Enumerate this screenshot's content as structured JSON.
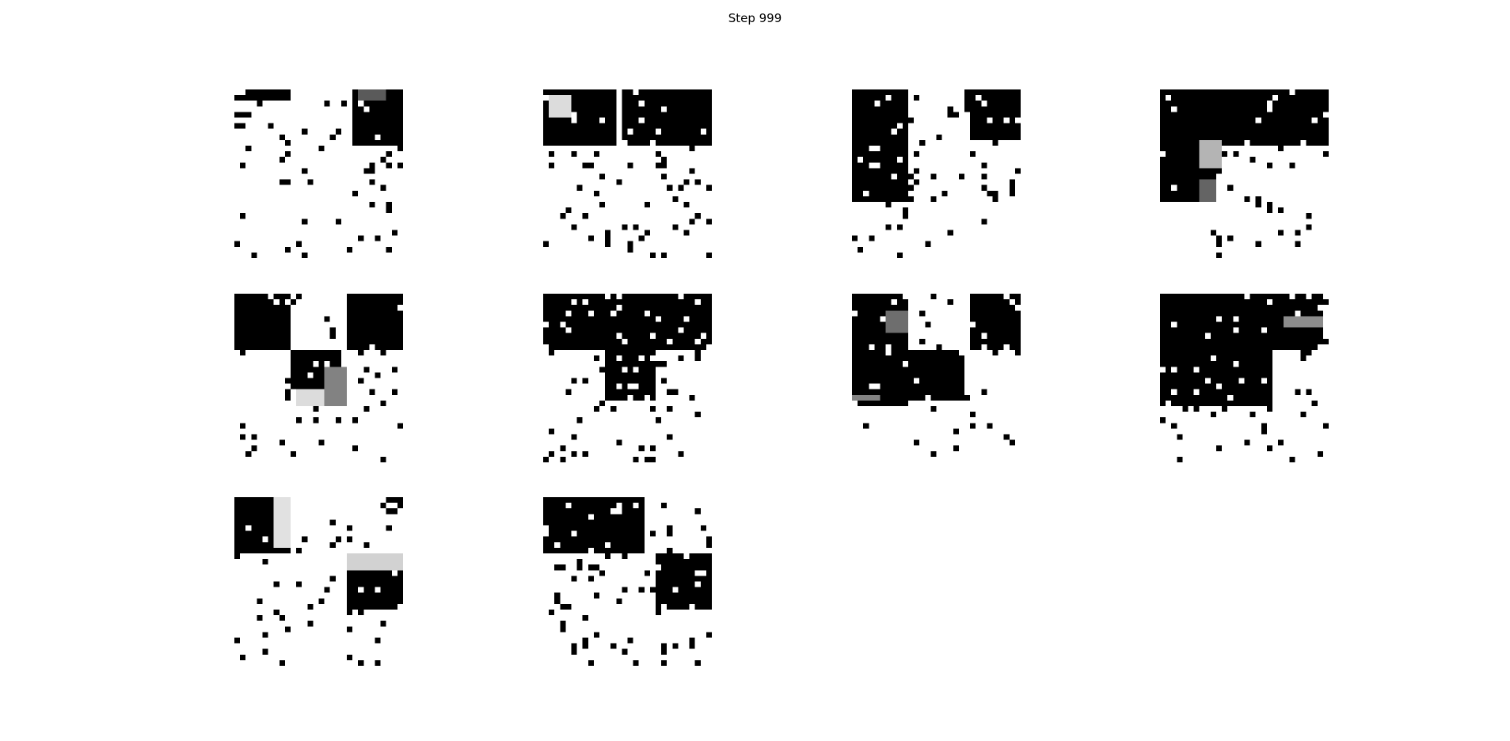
{
  "title": "Step 999",
  "grid": {
    "rows": 3,
    "cols": 4,
    "panel_count": 10,
    "image_cells": 30
  },
  "panels": [
    {
      "id": 1,
      "blocks": [
        {
          "r0": 0,
          "c0": 0,
          "r1": 2,
          "c1": 10,
          "v": 0
        },
        {
          "r0": 0,
          "c0": 21,
          "r1": 10,
          "c1": 30,
          "v": 0
        },
        {
          "r0": 0,
          "c0": 22,
          "r1": 2,
          "c1": 27,
          "v": 90
        }
      ],
      "density": 0.07,
      "seed": 11
    },
    {
      "id": 2,
      "blocks": [
        {
          "r0": 0,
          "c0": 0,
          "r1": 10,
          "c1": 13,
          "v": 0
        },
        {
          "r0": 0,
          "c0": 14,
          "r1": 10,
          "c1": 30,
          "v": 0
        },
        {
          "r0": 1,
          "c0": 1,
          "r1": 5,
          "c1": 5,
          "v": 220
        }
      ],
      "density": 0.07,
      "seed": 23
    },
    {
      "id": 3,
      "blocks": [
        {
          "r0": 0,
          "c0": 0,
          "r1": 20,
          "c1": 10,
          "v": 0
        },
        {
          "r0": 0,
          "c0": 20,
          "r1": 9,
          "c1": 30,
          "v": 0
        },
        {
          "r0": 4,
          "c0": 20,
          "r1": 9,
          "c1": 21,
          "v": 255
        }
      ],
      "density": 0.07,
      "seed": 37
    },
    {
      "id": 4,
      "blocks": [
        {
          "r0": 0,
          "c0": 0,
          "r1": 10,
          "c1": 30,
          "v": 0
        },
        {
          "r0": 10,
          "c0": 0,
          "r1": 20,
          "c1": 10,
          "v": 0
        },
        {
          "r0": 9,
          "c0": 7,
          "r1": 14,
          "c1": 11,
          "v": 180
        },
        {
          "r0": 16,
          "c0": 7,
          "r1": 20,
          "c1": 10,
          "v": 100
        }
      ],
      "density": 0.06,
      "seed": 41
    },
    {
      "id": 5,
      "blocks": [
        {
          "r0": 0,
          "c0": 0,
          "r1": 10,
          "c1": 10,
          "v": 0
        },
        {
          "r0": 0,
          "c0": 20,
          "r1": 10,
          "c1": 30,
          "v": 0
        },
        {
          "r0": 10,
          "c0": 10,
          "r1": 17,
          "c1": 19,
          "v": 0
        },
        {
          "r0": 13,
          "c0": 16,
          "r1": 20,
          "c1": 20,
          "v": 130
        },
        {
          "r0": 17,
          "c0": 11,
          "r1": 20,
          "c1": 16,
          "v": 220
        }
      ],
      "density": 0.07,
      "seed": 53
    },
    {
      "id": 6,
      "blocks": [
        {
          "r0": 0,
          "c0": 0,
          "r1": 10,
          "c1": 30,
          "v": 0
        },
        {
          "r0": 10,
          "c0": 11,
          "r1": 19,
          "c1": 20,
          "v": 0
        }
      ],
      "density": 0.06,
      "seed": 67
    },
    {
      "id": 7,
      "blocks": [
        {
          "r0": 0,
          "c0": 0,
          "r1": 20,
          "c1": 10,
          "v": 0
        },
        {
          "r0": 0,
          "c0": 21,
          "r1": 10,
          "c1": 30,
          "v": 0
        },
        {
          "r0": 10,
          "c0": 10,
          "r1": 19,
          "c1": 20,
          "v": 0
        },
        {
          "r0": 3,
          "c0": 6,
          "r1": 7,
          "c1": 10,
          "v": 110
        },
        {
          "r0": 18,
          "c0": 0,
          "r1": 19,
          "c1": 5,
          "v": 130
        }
      ],
      "density": 0.06,
      "seed": 79
    },
    {
      "id": 8,
      "blocks": [
        {
          "r0": 0,
          "c0": 0,
          "r1": 20,
          "c1": 20,
          "v": 0
        },
        {
          "r0": 0,
          "c0": 20,
          "r1": 10,
          "c1": 29,
          "v": 0
        },
        {
          "r0": 4,
          "c0": 22,
          "r1": 6,
          "c1": 29,
          "v": 140
        }
      ],
      "density": 0.07,
      "seed": 83
    },
    {
      "id": 9,
      "blocks": [
        {
          "r0": 0,
          "c0": 0,
          "r1": 10,
          "c1": 10,
          "v": 0
        },
        {
          "r0": 10,
          "c0": 20,
          "r1": 20,
          "c1": 30,
          "v": 0
        },
        {
          "r0": 0,
          "c0": 7,
          "r1": 9,
          "c1": 10,
          "v": 225
        },
        {
          "r0": 10,
          "c0": 20,
          "r1": 13,
          "c1": 30,
          "v": 210
        }
      ],
      "density": 0.07,
      "seed": 97
    },
    {
      "id": 10,
      "blocks": [
        {
          "r0": 0,
          "c0": 0,
          "r1": 10,
          "c1": 18,
          "v": 0
        },
        {
          "r0": 10,
          "c0": 20,
          "r1": 20,
          "c1": 30,
          "v": 0
        }
      ],
      "density": 0.07,
      "seed": 101
    }
  ]
}
